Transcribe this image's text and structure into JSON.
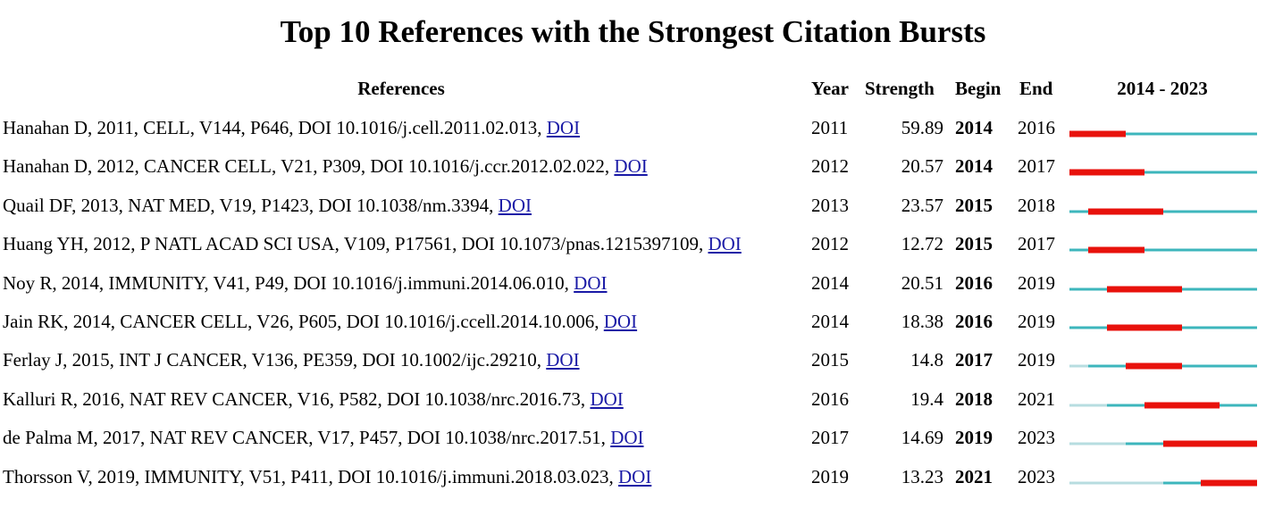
{
  "chart_data": {
    "type": "table",
    "title": "Top 10 References with the Strongest Citation Bursts",
    "range_start": 2014,
    "range_end": 2023,
    "range_label": "2014 - 2023",
    "columns": {
      "references": "References",
      "year": "Year",
      "strength": "Strength",
      "begin": "Begin",
      "end": "End"
    },
    "colors": {
      "burst": "#e8120c",
      "active": "#3db6bc",
      "pre_publication": "#b7dde0"
    },
    "rows": [
      {
        "ref": "Hanahan D, 2011, CELL, V144, P646, DOI 10.1016/j.cell.2011.02.013, ",
        "doi": "DOI",
        "year": 2011,
        "strength": "59.89",
        "begin": 2014,
        "end": 2016
      },
      {
        "ref": "Hanahan D, 2012, CANCER CELL, V21, P309, DOI 10.1016/j.ccr.2012.02.022, ",
        "doi": "DOI",
        "year": 2012,
        "strength": "20.57",
        "begin": 2014,
        "end": 2017
      },
      {
        "ref": "Quail DF, 2013, NAT MED, V19, P1423, DOI 10.1038/nm.3394, ",
        "doi": "DOI",
        "year": 2013,
        "strength": "23.57",
        "begin": 2015,
        "end": 2018
      },
      {
        "ref": "Huang YH, 2012, P NATL ACAD SCI USA, V109, P17561, DOI 10.1073/pnas.1215397109, ",
        "doi": "DOI",
        "year": 2012,
        "strength": "12.72",
        "begin": 2015,
        "end": 2017
      },
      {
        "ref": "Noy R, 2014, IMMUNITY, V41, P49, DOI 10.1016/j.immuni.2014.06.010, ",
        "doi": "DOI",
        "year": 2014,
        "strength": "20.51",
        "begin": 2016,
        "end": 2019
      },
      {
        "ref": "Jain RK, 2014, CANCER CELL, V26, P605, DOI 10.1016/j.ccell.2014.10.006, ",
        "doi": "DOI",
        "year": 2014,
        "strength": "18.38",
        "begin": 2016,
        "end": 2019
      },
      {
        "ref": "Ferlay J, 2015, INT J CANCER, V136, PE359, DOI 10.1002/ijc.29210, ",
        "doi": "DOI",
        "year": 2015,
        "strength": "14.8",
        "begin": 2017,
        "end": 2019
      },
      {
        "ref": "Kalluri R, 2016, NAT REV CANCER, V16, P582, DOI 10.1038/nrc.2016.73, ",
        "doi": "DOI",
        "year": 2016,
        "strength": "19.4",
        "begin": 2018,
        "end": 2021
      },
      {
        "ref": "de Palma M, 2017, NAT REV CANCER, V17, P457, DOI 10.1038/nrc.2017.51, ",
        "doi": "DOI",
        "year": 2017,
        "strength": "14.69",
        "begin": 2019,
        "end": 2023
      },
      {
        "ref": "Thorsson V, 2019, IMMUNITY, V51, P411, DOI 10.1016/j.immuni.2018.03.023, ",
        "doi": "DOI",
        "year": 2019,
        "strength": "13.23",
        "begin": 2021,
        "end": 2023
      }
    ]
  }
}
